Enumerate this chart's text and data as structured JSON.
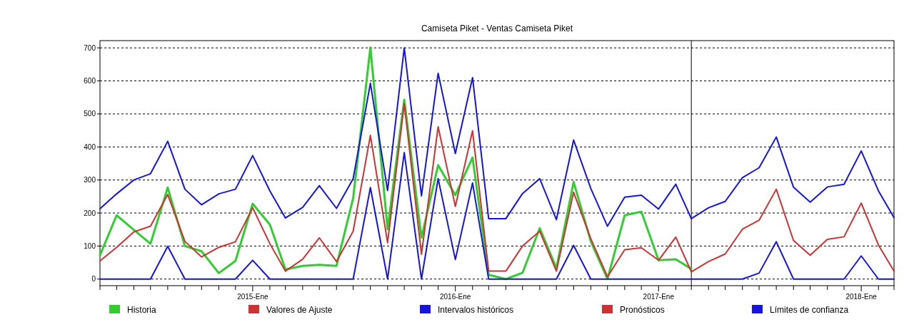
{
  "chart_data": {
    "type": "line",
    "title": "Camiseta Piket - Ventas Camiseta Piket",
    "x": [
      "2014-04",
      "2014-05",
      "2014-06",
      "2014-07",
      "2014-08",
      "2014-09",
      "2014-10",
      "2014-11",
      "2014-12",
      "2015-01",
      "2015-02",
      "2015-03",
      "2015-04",
      "2015-05",
      "2015-06",
      "2015-07",
      "2015-08",
      "2015-09",
      "2015-10",
      "2015-11",
      "2015-12",
      "2016-01",
      "2016-02",
      "2016-03",
      "2016-04",
      "2016-05",
      "2016-06",
      "2016-07",
      "2016-08",
      "2016-09",
      "2016-10",
      "2016-11",
      "2016-12",
      "2017-01",
      "2017-02",
      "2017-03",
      "2017-04",
      "2017-05",
      "2017-06",
      "2017-07",
      "2017-08",
      "2017-09",
      "2017-10",
      "2017-11",
      "2017-12",
      "2018-01",
      "2018-02",
      "2018-03"
    ],
    "series": [
      {
        "name": "Historia",
        "color": "#33cc33",
        "values": [
          72,
          193,
          149,
          107,
          277,
          100,
          84,
          18,
          55,
          228,
          165,
          29,
          40,
          43,
          40,
          245,
          701,
          151,
          543,
          125,
          345,
          254,
          368,
          13,
          0,
          19,
          154,
          33,
          294,
          114,
          0,
          193,
          204,
          57,
          60,
          31,
          null,
          null,
          null,
          null,
          null,
          null,
          null,
          null,
          null,
          null,
          null,
          null
        ]
      },
      {
        "name": "Valores de Ajuste",
        "color": "#cc3333",
        "values": [
          55,
          96,
          143,
          160,
          256,
          114,
          67,
          96,
          113,
          216,
          107,
          24,
          60,
          125,
          53,
          145,
          435,
          110,
          531,
          75,
          461,
          220,
          449,
          24,
          24,
          100,
          145,
          24,
          263,
          122,
          7,
          89,
          95,
          57,
          127,
          22,
          null,
          null,
          null,
          null,
          null,
          null,
          null,
          null,
          null,
          null,
          null,
          null
        ]
      },
      {
        "name": "Intervalos históricos",
        "color": "#1515dd",
        "values": [
          213,
          258,
          300,
          319,
          417,
          272,
          225,
          258,
          272,
          374,
          267,
          185,
          217,
          283,
          214,
          304,
          593,
          268,
          700,
          252,
          623,
          380,
          610,
          183,
          183,
          259,
          304,
          180,
          421,
          274,
          160,
          248,
          254,
          212,
          287,
          183,
          null,
          null,
          null,
          null,
          null,
          null,
          null,
          null,
          null,
          null,
          null,
          null
        ]
      },
      {
        "name": "Pronósticos",
        "color": "#cc3333",
        "values": [
          null,
          null,
          null,
          null,
          null,
          null,
          null,
          null,
          null,
          null,
          null,
          null,
          null,
          null,
          null,
          null,
          null,
          null,
          null,
          null,
          null,
          null,
          null,
          null,
          null,
          null,
          null,
          null,
          null,
          null,
          null,
          null,
          null,
          null,
          null,
          22,
          53,
          76,
          151,
          178,
          272,
          117,
          72,
          120,
          128,
          230,
          103,
          24
        ]
      },
      {
        "name": "Límites de confianza",
        "color": "#1515dd",
        "values": [
          null,
          null,
          null,
          null,
          null,
          null,
          null,
          null,
          null,
          null,
          null,
          null,
          null,
          null,
          null,
          null,
          null,
          null,
          null,
          null,
          null,
          null,
          null,
          null,
          null,
          null,
          null,
          null,
          null,
          null,
          null,
          null,
          null,
          null,
          null,
          183,
          216,
          235,
          307,
          337,
          430,
          278,
          233,
          279,
          287,
          388,
          267,
          186
        ]
      },
      {
        "color": "#1515dd",
        "values": [
          0,
          0,
          0,
          0,
          99,
          0,
          0,
          0,
          0,
          57,
          0,
          0,
          0,
          0,
          0,
          0,
          277,
          0,
          383,
          0,
          304,
          59,
          291,
          0,
          0,
          0,
          0,
          0,
          102,
          0,
          0,
          0,
          0,
          0,
          0,
          0,
          0,
          0,
          0,
          18,
          113,
          0,
          0,
          0,
          0,
          70,
          0,
          0
        ]
      }
    ],
    "xlim": [
      "2014-04",
      "2018-03"
    ],
    "xticks": [
      {
        "value": "2014-04",
        "label": null
      },
      {
        "value": "2014-05",
        "label": null
      },
      {
        "value": "2014-06",
        "label": null
      },
      {
        "value": "2014-07",
        "label": null
      },
      {
        "value": "2014-08",
        "label": null
      },
      {
        "value": "2014-09",
        "label": null
      },
      {
        "value": "2014-10",
        "label": null
      },
      {
        "value": "2014-11",
        "label": null
      },
      {
        "value": "2014-12",
        "label": null
      },
      {
        "value": "2015-01",
        "label": "2015-Ene"
      },
      {
        "value": "2015-02",
        "label": null
      },
      {
        "value": "2015-03",
        "label": null
      },
      {
        "value": "2015-04",
        "label": null
      },
      {
        "value": "2015-05",
        "label": null
      },
      {
        "value": "2015-06",
        "label": null
      },
      {
        "value": "2015-07",
        "label": null
      },
      {
        "value": "2015-08",
        "label": null
      },
      {
        "value": "2015-09",
        "label": null
      },
      {
        "value": "2015-10",
        "label": null
      },
      {
        "value": "2015-11",
        "label": null
      },
      {
        "value": "2015-12",
        "label": null
      },
      {
        "value": "2016-01",
        "label": "2016-Ene"
      },
      {
        "value": "2016-02",
        "label": null
      },
      {
        "value": "2016-03",
        "label": null
      },
      {
        "value": "2016-04",
        "label": null
      },
      {
        "value": "2016-05",
        "label": null
      },
      {
        "value": "2016-06",
        "label": null
      },
      {
        "value": "2016-07",
        "label": null
      },
      {
        "value": "2016-08",
        "label": null
      },
      {
        "value": "2016-09",
        "label": null
      },
      {
        "value": "2016-10",
        "label": null
      },
      {
        "value": "2016-11",
        "label": null
      },
      {
        "value": "2016-12",
        "label": null
      },
      {
        "value": "2017-01",
        "label": "2017-Ene"
      },
      {
        "value": "2017-02",
        "label": null
      },
      {
        "value": "2017-03",
        "label": null
      },
      {
        "value": "2017-04",
        "label": null
      },
      {
        "value": "2017-05",
        "label": null
      },
      {
        "value": "2017-06",
        "label": null
      },
      {
        "value": "2017-07",
        "label": null
      },
      {
        "value": "2017-08",
        "label": null
      },
      {
        "value": "2017-09",
        "label": null
      },
      {
        "value": "2017-10",
        "label": null
      },
      {
        "value": "2017-11",
        "label": null
      },
      {
        "value": "2017-12",
        "label": null
      },
      {
        "value": "2018-01",
        "label": "2018-Ene"
      },
      {
        "value": "2018-02",
        "label": null
      },
      {
        "value": "2018-03",
        "label": null
      }
    ],
    "ylim": [
      -20,
      722
    ],
    "yticks": [
      0,
      100,
      200,
      300,
      400,
      500,
      600,
      700
    ],
    "grid": "y",
    "legend": "bottom",
    "marker": "none",
    "line_style": "solid",
    "ref_lines": [
      {
        "axis": "x",
        "value": "2017-03",
        "color": "#000000"
      }
    ]
  }
}
